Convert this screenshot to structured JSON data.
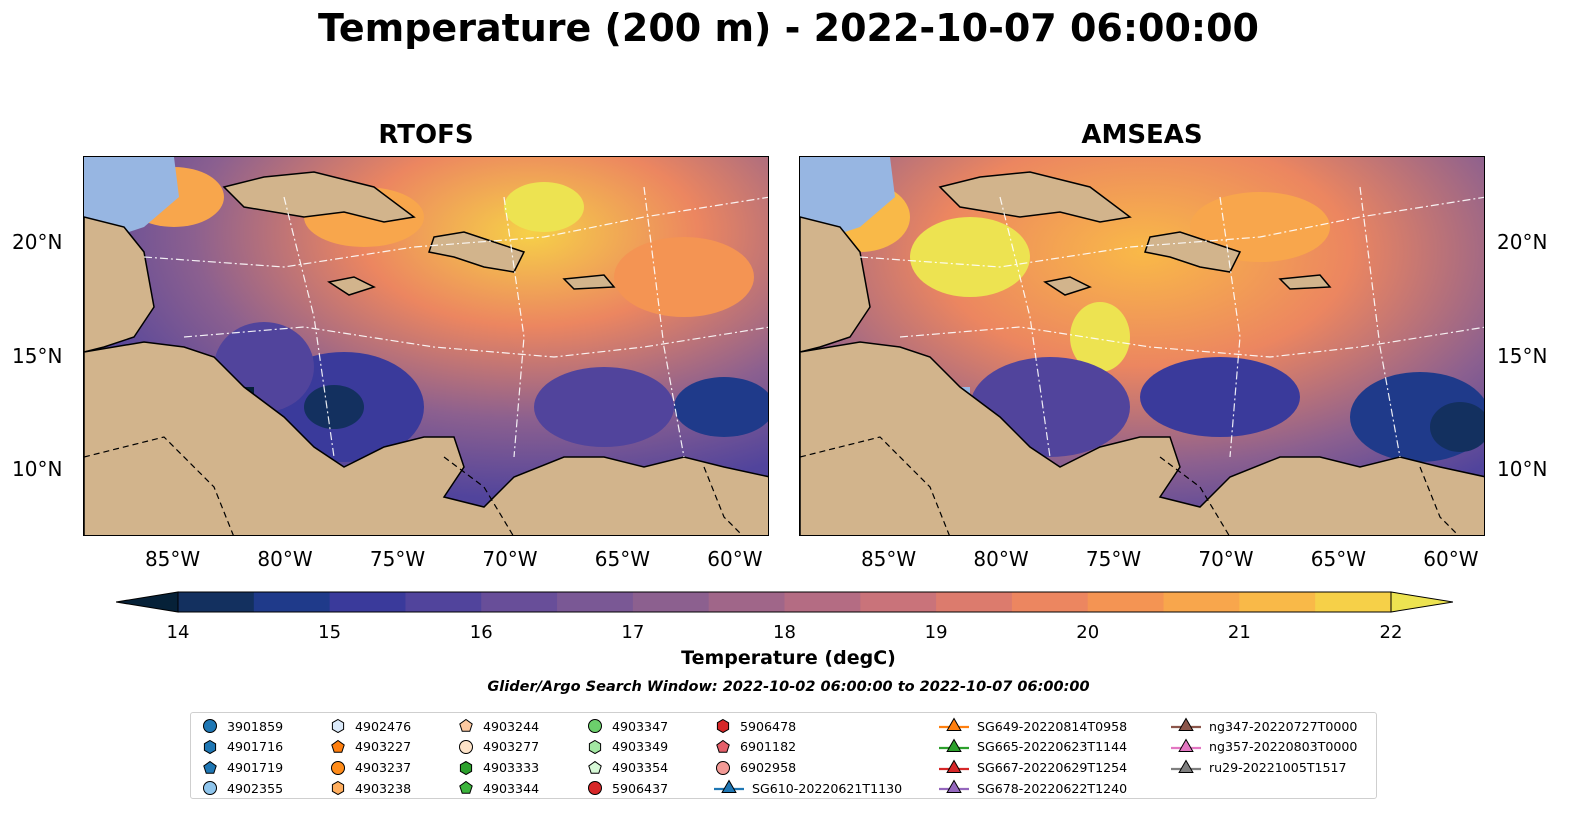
{
  "title": "Temperature (200 m) - 2022-10-07 06:00:00",
  "panels": [
    {
      "title": "RTOFS"
    },
    {
      "title": "AMSEAS"
    }
  ],
  "lat_ticks": [
    "20°N",
    "15°N",
    "10°N"
  ],
  "lon_ticks": [
    "85°W",
    "80°W",
    "75°W",
    "70°W",
    "65°W",
    "60°W"
  ],
  "chart_data": {
    "type": "heatmap",
    "title": "Temperature (200 m) - 2022-10-07 06:00:00",
    "subplots": [
      "RTOFS",
      "AMSEAS"
    ],
    "lon_range": [
      -89,
      -58.5
    ],
    "lat_range": [
      7,
      24
    ],
    "lon_ticks": [
      -85,
      -80,
      -75,
      -70,
      -65,
      -60
    ],
    "lat_ticks": [
      20,
      15,
      10
    ],
    "colorbar": {
      "label": "Temperature (degC)",
      "min": 14,
      "max": 22,
      "step": 0.5,
      "ticks": [
        14,
        15,
        16,
        17,
        18,
        19,
        20,
        21,
        22
      ],
      "extend": "both",
      "colormap": "thermal"
    },
    "search_window": "Glider/Argo Search Window: 2022-10-02 06:00:00 to 2022-10-07 06:00:00"
  },
  "colors": {
    "land": "#d2b48c",
    "shallow": "#97b6e2",
    "cmap": [
      "#062138",
      "#13305f",
      "#1f3a8a",
      "#3a3a9b",
      "#51449c",
      "#684e99",
      "#7a5895",
      "#8c608f",
      "#a06689",
      "#b46c83",
      "#c9737a",
      "#dc7b6d",
      "#ec8660",
      "#f49453",
      "#f8a64c",
      "#f9b948",
      "#f6d048",
      "#ede351"
    ]
  },
  "legend": {
    "items": [
      {
        "label": "3901859",
        "color": "#1f77b4",
        "shape": "circle"
      },
      {
        "label": "4901716",
        "color": "#1f77b4",
        "shape": "hexagon"
      },
      {
        "label": "4901719",
        "color": "#1f77b4",
        "shape": "pentagon"
      },
      {
        "label": "4902355",
        "color": "#8fc5ec",
        "shape": "circle"
      },
      {
        "label": "4902476",
        "color": "#dbeafa",
        "shape": "hexagon"
      },
      {
        "label": "4903227",
        "color": "#ff7f0e",
        "shape": "pentagon"
      },
      {
        "label": "4903237",
        "color": "#ff8c1a",
        "shape": "circle"
      },
      {
        "label": "4903238",
        "color": "#ffae5e",
        "shape": "hexagon"
      },
      {
        "label": "4903244",
        "color": "#fdc9a0",
        "shape": "pentagon"
      },
      {
        "label": "4903277",
        "color": "#fde3c8",
        "shape": "circle"
      },
      {
        "label": "4903333",
        "color": "#2ca02c",
        "shape": "hexagon"
      },
      {
        "label": "4903344",
        "color": "#3cb43c",
        "shape": "pentagon"
      },
      {
        "label": "4903347",
        "color": "#6cd06c",
        "shape": "circle"
      },
      {
        "label": "4903349",
        "color": "#a3e8a3",
        "shape": "hexagon"
      },
      {
        "label": "4903354",
        "color": "#d6f8d6",
        "shape": "pentagon"
      },
      {
        "label": "5906437",
        "color": "#d62728",
        "shape": "circle"
      },
      {
        "label": "5906478",
        "color": "#d62728",
        "shape": "hexagon"
      },
      {
        "label": "6901182",
        "color": "#e5606a",
        "shape": "pentagon"
      },
      {
        "label": "6902958",
        "color": "#f29a96",
        "shape": "circle"
      },
      {
        "label": "SG610-20220621T1130",
        "color": "#1f77b4",
        "shape": "triangle"
      },
      {
        "label": "SG649-20220814T0958",
        "color": "#ff7f0e",
        "shape": "triangle"
      },
      {
        "label": "SG665-20220623T1144",
        "color": "#2ca02c",
        "shape": "triangle"
      },
      {
        "label": "SG667-20220629T1254",
        "color": "#d62728",
        "shape": "triangle"
      },
      {
        "label": "SG678-20220622T1240",
        "color": "#9467bd",
        "shape": "triangle"
      },
      {
        "label": "ng347-20220727T0000",
        "color": "#8c564b",
        "shape": "triangle"
      },
      {
        "label": "ng357-20220803T0000",
        "color": "#e377c2",
        "shape": "triangle"
      },
      {
        "label": "ru29-20221005T1517",
        "color": "#7f7f7f",
        "shape": "triangle"
      }
    ]
  }
}
